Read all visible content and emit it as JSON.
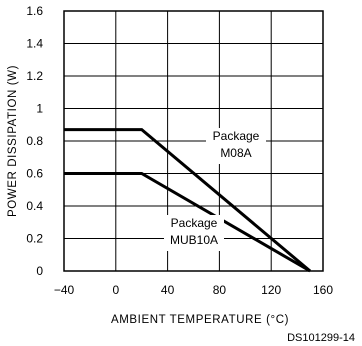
{
  "chart_data": {
    "type": "line",
    "xlabel": "AMBIENT TEMPERATURE (°C)",
    "ylabel": "POWER DISSIPATION (W)",
    "xlim": [
      -40,
      160
    ],
    "ylim": [
      0,
      1.6
    ],
    "x_ticks": [
      "−40",
      "0",
      "40",
      "80",
      "120",
      "160"
    ],
    "y_ticks": [
      "0",
      "0.2",
      "0.4",
      "0.6",
      "0.8",
      "1",
      "1.2",
      "1.4",
      "1.6"
    ],
    "grid": true,
    "series": [
      {
        "name": "Package M08A",
        "x": [
          -40,
          20,
          150
        ],
        "y": [
          0.87,
          0.87,
          0
        ]
      },
      {
        "name": "Package MUB10A",
        "x": [
          -40,
          20,
          150
        ],
        "y": [
          0.6,
          0.6,
          0
        ]
      }
    ],
    "annotations": [
      {
        "lines": [
          "Package",
          "M08A"
        ]
      },
      {
        "lines": [
          "Package",
          "MUB10A"
        ]
      }
    ],
    "figure_id": "DS101299-14"
  }
}
